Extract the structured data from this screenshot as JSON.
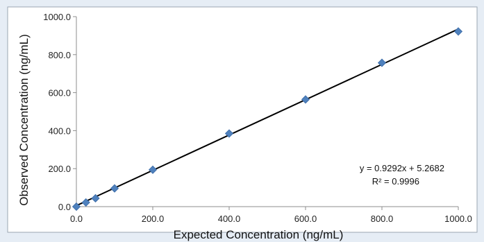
{
  "chart_data": {
    "type": "scatter",
    "title": "",
    "xlabel": "Expected Concentration (ng/mL)",
    "ylabel": "Observed Concentration (ng/mL)",
    "xlim": [
      0,
      1000
    ],
    "ylim": [
      0,
      1000
    ],
    "x_ticks": [
      "0.0",
      "200.0",
      "400.0",
      "600.0",
      "800.0",
      "1000.0"
    ],
    "y_ticks": [
      "0.0",
      "200.0",
      "400.0",
      "600.0",
      "800.0",
      "1000.0"
    ],
    "grid": false,
    "legend": "none",
    "series": [
      {
        "marker": "diamond",
        "color": "#4f81bd",
        "points": [
          {
            "x": 0,
            "y": 0
          },
          {
            "x": 25,
            "y": 22
          },
          {
            "x": 50,
            "y": 44
          },
          {
            "x": 100,
            "y": 96
          },
          {
            "x": 200,
            "y": 194
          },
          {
            "x": 400,
            "y": 385
          },
          {
            "x": 600,
            "y": 564
          },
          {
            "x": 800,
            "y": 757
          },
          {
            "x": 1000,
            "y": 922
          }
        ]
      }
    ],
    "trendline": {
      "slope": 0.9292,
      "intercept": 5.2682,
      "color": "#000000",
      "equation_label": "y = 0.9292x + 5.2682",
      "r2_label": "R² = 0.9996"
    }
  }
}
